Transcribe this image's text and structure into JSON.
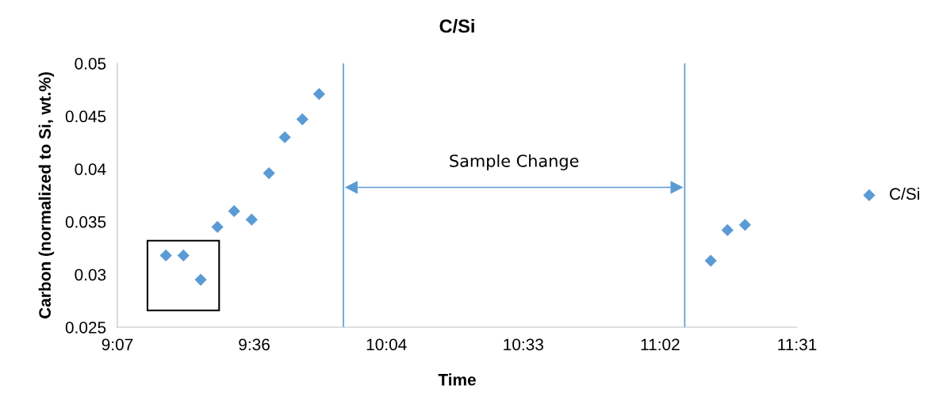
{
  "chart_data": {
    "type": "scatter",
    "title": "C/Si",
    "xlabel": "Time",
    "ylabel": "Carbon (normalized to Si, wt.%)",
    "series": [
      {
        "name": "C/Si",
        "color": "#5b9bd5",
        "x": [
          9.288,
          9.35,
          9.411,
          9.47,
          9.529,
          9.591,
          9.652,
          9.708,
          9.77,
          9.829,
          11.212,
          11.271,
          11.333
        ],
        "values": [
          0.0318,
          0.0318,
          0.0295,
          0.0345,
          0.036,
          0.0352,
          0.0396,
          0.043,
          0.0447,
          0.0471,
          0.0313,
          0.0342,
          0.0347
        ]
      }
    ],
    "xlim": [
      9.1167,
      11.5167
    ],
    "xticks": [
      {
        "value": 9.1167,
        "label": "9:07"
      },
      {
        "value": 9.6,
        "label": "9:36"
      },
      {
        "value": 10.0667,
        "label": "10:04"
      },
      {
        "value": 10.55,
        "label": "10:33"
      },
      {
        "value": 11.0333,
        "label": "11:02"
      },
      {
        "value": 11.5167,
        "label": "11:31"
      }
    ],
    "ylim": [
      0.025,
      0.05
    ],
    "yticks": [
      0.025,
      0.03,
      0.035,
      0.04,
      0.045,
      0.05
    ],
    "ref_lines": [
      {
        "axis": "x",
        "value": 9.915,
        "color": "#5b9bd5"
      },
      {
        "axis": "x",
        "value": 11.12,
        "color": "#5b9bd5"
      }
    ],
    "annotations": [
      "Sample Change"
    ],
    "marker": "diamond",
    "legend": "right",
    "grid": false
  }
}
